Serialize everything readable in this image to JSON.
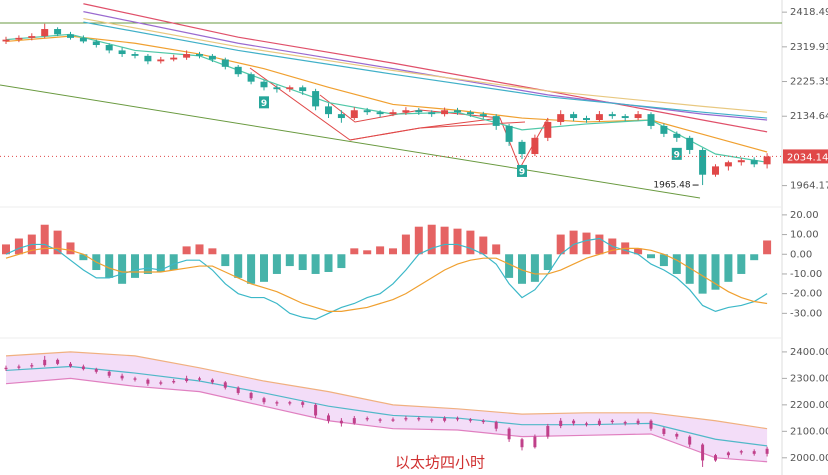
{
  "chart_data": [
    {
      "type": "candlestick",
      "log": true,
      "ylim": [
        1919,
        2454
      ],
      "yticks": [
        2418.49,
        2319.91,
        2225.35,
        2134.64,
        1964.17
      ],
      "up_color": "#e04848",
      "down_color": "#26a69a",
      "open": [
        2335,
        2340,
        2345,
        2350,
        2370,
        2355,
        2345,
        2335,
        2325,
        2310,
        2300,
        2295,
        2280,
        2285,
        2290,
        2300,
        2295,
        2285,
        2265,
        2245,
        2225,
        2210,
        2205,
        2210,
        2200,
        2160,
        2140,
        2130,
        2150,
        2145,
        2140,
        2145,
        2150,
        2145,
        2140,
        2150,
        2145,
        2140,
        2135,
        2110,
        2070,
        2040,
        2080,
        2120,
        2140,
        2130,
        2125,
        2140,
        2135,
        2130,
        2140,
        2110,
        2090,
        2080,
        2050,
        1990,
        2010,
        2020,
        2025,
        2015
      ],
      "high": [
        2348,
        2352,
        2358,
        2385,
        2375,
        2362,
        2352,
        2340,
        2330,
        2318,
        2306,
        2300,
        2292,
        2298,
        2310,
        2306,
        2300,
        2290,
        2270,
        2250,
        2230,
        2216,
        2215,
        2215,
        2206,
        2168,
        2150,
        2158,
        2156,
        2150,
        2152,
        2158,
        2156,
        2150,
        2157,
        2156,
        2150,
        2146,
        2140,
        2115,
        2075,
        2088,
        2128,
        2150,
        2146,
        2136,
        2148,
        2146,
        2140,
        2148,
        2145,
        2116,
        2096,
        2085,
        2055,
        2015,
        2024,
        2030,
        2032,
        2042
      ],
      "low": [
        2328,
        2333,
        2338,
        2344,
        2350,
        2340,
        2330,
        2318,
        2302,
        2292,
        2288,
        2272,
        2274,
        2280,
        2284,
        2288,
        2278,
        2258,
        2238,
        2218,
        2202,
        2196,
        2198,
        2190,
        2150,
        2130,
        2118,
        2125,
        2138,
        2132,
        2135,
        2138,
        2138,
        2133,
        2134,
        2138,
        2133,
        2128,
        2100,
        2060,
        2028,
        2035,
        2072,
        2112,
        2122,
        2118,
        2120,
        2128,
        2122,
        2124,
        2102,
        2082,
        2070,
        2040,
        1965.48,
        1985,
        2000,
        2012,
        2008,
        2005
      ],
      "close": [
        2340,
        2345,
        2350,
        2370,
        2355,
        2345,
        2335,
        2325,
        2310,
        2300,
        2295,
        2280,
        2285,
        2290,
        2300,
        2295,
        2285,
        2265,
        2245,
        2225,
        2210,
        2205,
        2210,
        2200,
        2160,
        2140,
        2130,
        2150,
        2145,
        2140,
        2145,
        2150,
        2145,
        2140,
        2150,
        2145,
        2140,
        2135,
        2110,
        2070,
        2040,
        2080,
        2120,
        2140,
        2130,
        2125,
        2140,
        2135,
        2130,
        2140,
        2110,
        2090,
        2080,
        2050,
        1990,
        2010,
        2020,
        2025,
        2015,
        2034.14
      ],
      "moving_averages": [
        {
          "color": "#e0506a",
          "x": [
            6,
            18,
            30,
            42,
            54,
            59
          ],
          "values": [
            2443,
            2347,
            2275,
            2200,
            2125,
            2095
          ]
        },
        {
          "color": "#9a6ad0",
          "x": [
            6,
            18,
            30,
            42,
            54,
            59
          ],
          "values": [
            2420,
            2330,
            2260,
            2190,
            2140,
            2125
          ]
        },
        {
          "color": "#e8c880",
          "x": [
            6,
            18,
            30,
            42,
            54,
            59
          ],
          "values": [
            2400,
            2320,
            2255,
            2200,
            2160,
            2145
          ]
        },
        {
          "color": "#40b0c8",
          "x": [
            6,
            18,
            30,
            42,
            54,
            59
          ],
          "values": [
            2390,
            2310,
            2245,
            2185,
            2145,
            2130
          ]
        },
        {
          "color": "#f0a030",
          "x": [
            0,
            5,
            10,
            15,
            20,
            25,
            30,
            35,
            40,
            45,
            50,
            55,
            59
          ],
          "values": [
            2335,
            2350,
            2330,
            2300,
            2260,
            2210,
            2165,
            2150,
            2130,
            2120,
            2125,
            2080,
            2045
          ]
        },
        {
          "color": "#50c8a8",
          "x": [
            0,
            5,
            10,
            15,
            20,
            25,
            30,
            35,
            40,
            45,
            50,
            55,
            59
          ],
          "values": [
            2340,
            2355,
            2310,
            2295,
            2230,
            2170,
            2140,
            2145,
            2100,
            2115,
            2125,
            2040,
            2020
          ]
        }
      ],
      "low_label": {
        "index": 54,
        "value": 1965.48
      },
      "last_price": 2034.14,
      "td_labels": [
        {
          "index": 20,
          "text": "9"
        },
        {
          "index": 40,
          "text": "9"
        },
        {
          "index": 52,
          "text": "9"
        }
      ]
    },
    {
      "type": "macd",
      "ylim": [
        -41,
        24
      ],
      "yticks": [
        {
          "value": 20,
          "label": "20.00"
        },
        {
          "value": 10,
          "label": "10.00"
        },
        {
          "value": 0,
          "label": "0.00"
        },
        {
          "value": -10,
          "label": "-10.00"
        },
        {
          "value": -20,
          "label": "-20.00"
        },
        {
          "value": -30,
          "label": "-30.00"
        }
      ],
      "histogram": [
        5,
        8,
        10,
        15,
        12,
        6,
        -3,
        -8,
        -12,
        -15,
        -12,
        -10,
        -9,
        -8,
        4,
        5,
        3,
        -6,
        -12,
        -15,
        -14,
        -10,
        -6,
        -8,
        -10,
        -9,
        -7,
        3,
        2,
        4,
        3,
        10,
        14,
        15,
        14,
        13,
        12,
        9,
        5,
        -12,
        -15,
        -14,
        -8,
        10,
        12,
        11,
        10,
        8,
        6,
        3,
        -2,
        -6,
        -10,
        -15,
        -20,
        -18,
        -14,
        -10,
        -3,
        7
      ],
      "pos_color": "#e04848",
      "neg_color": "#26a69a",
      "series": [
        {
          "color": "#3cb8c8",
          "values": [
            0,
            3,
            5,
            5,
            2,
            -3,
            -8,
            -12,
            -12,
            -10,
            -8,
            -7,
            -8,
            -5,
            -3,
            -3,
            -8,
            -15,
            -20,
            -22,
            -22,
            -25,
            -30,
            -32,
            -33,
            -30,
            -27,
            -25,
            -22,
            -20,
            -15,
            -8,
            0,
            3,
            5,
            5,
            3,
            0,
            -5,
            -15,
            -22,
            -18,
            -10,
            0,
            5,
            7,
            8,
            4,
            2,
            0,
            -5,
            -8,
            -12,
            -18,
            -26,
            -29,
            -27,
            -26,
            -24,
            -20
          ]
        },
        {
          "color": "#f0a030",
          "values": [
            -2,
            0,
            2,
            3,
            3,
            2,
            0,
            -4,
            -7,
            -9,
            -9,
            -9,
            -9,
            -8,
            -7,
            -6,
            -6,
            -9,
            -12,
            -15,
            -17,
            -19,
            -22,
            -25,
            -27,
            -29,
            -29,
            -28,
            -27,
            -25,
            -23,
            -20,
            -16,
            -12,
            -8,
            -5,
            -3,
            -2,
            -2,
            -5,
            -8,
            -10,
            -10,
            -8,
            -5,
            -2,
            0,
            2,
            3,
            3,
            2,
            0,
            -3,
            -7,
            -11,
            -15,
            -19,
            -22,
            -24,
            -25
          ]
        }
      ]
    },
    {
      "type": "bollinger",
      "ylim": [
        1935,
        2445
      ],
      "yticks": [
        {
          "value": 2400,
          "label": "2400.00"
        },
        {
          "value": 2300,
          "label": "2300.00"
        },
        {
          "value": 2200,
          "label": "2200.00"
        },
        {
          "value": 2100,
          "label": "2100.00"
        },
        {
          "value": 2000,
          "label": "2000.00"
        }
      ],
      "candle_color": "#c0408a",
      "fill": "#f3ddf8",
      "x": [
        0,
        5,
        10,
        15,
        20,
        25,
        30,
        35,
        40,
        45,
        50,
        55,
        59
      ],
      "upper": {
        "color": "#f0b080",
        "values": [
          2385,
          2400,
          2385,
          2340,
          2290,
          2250,
          2200,
          2185,
          2165,
          2170,
          2170,
          2140,
          2110
        ]
      },
      "middle": {
        "color": "#50b8c8",
        "values": [
          2330,
          2345,
          2320,
          2290,
          2245,
          2195,
          2160,
          2150,
          2125,
          2125,
          2130,
          2070,
          2045
        ]
      },
      "lower": {
        "color": "#e080c0",
        "values": [
          2280,
          2300,
          2270,
          2250,
          2195,
          2140,
          2110,
          2105,
          2080,
          2085,
          2090,
          2000,
          1985
        ]
      },
      "watermark": "以太坊四小时"
    }
  ]
}
